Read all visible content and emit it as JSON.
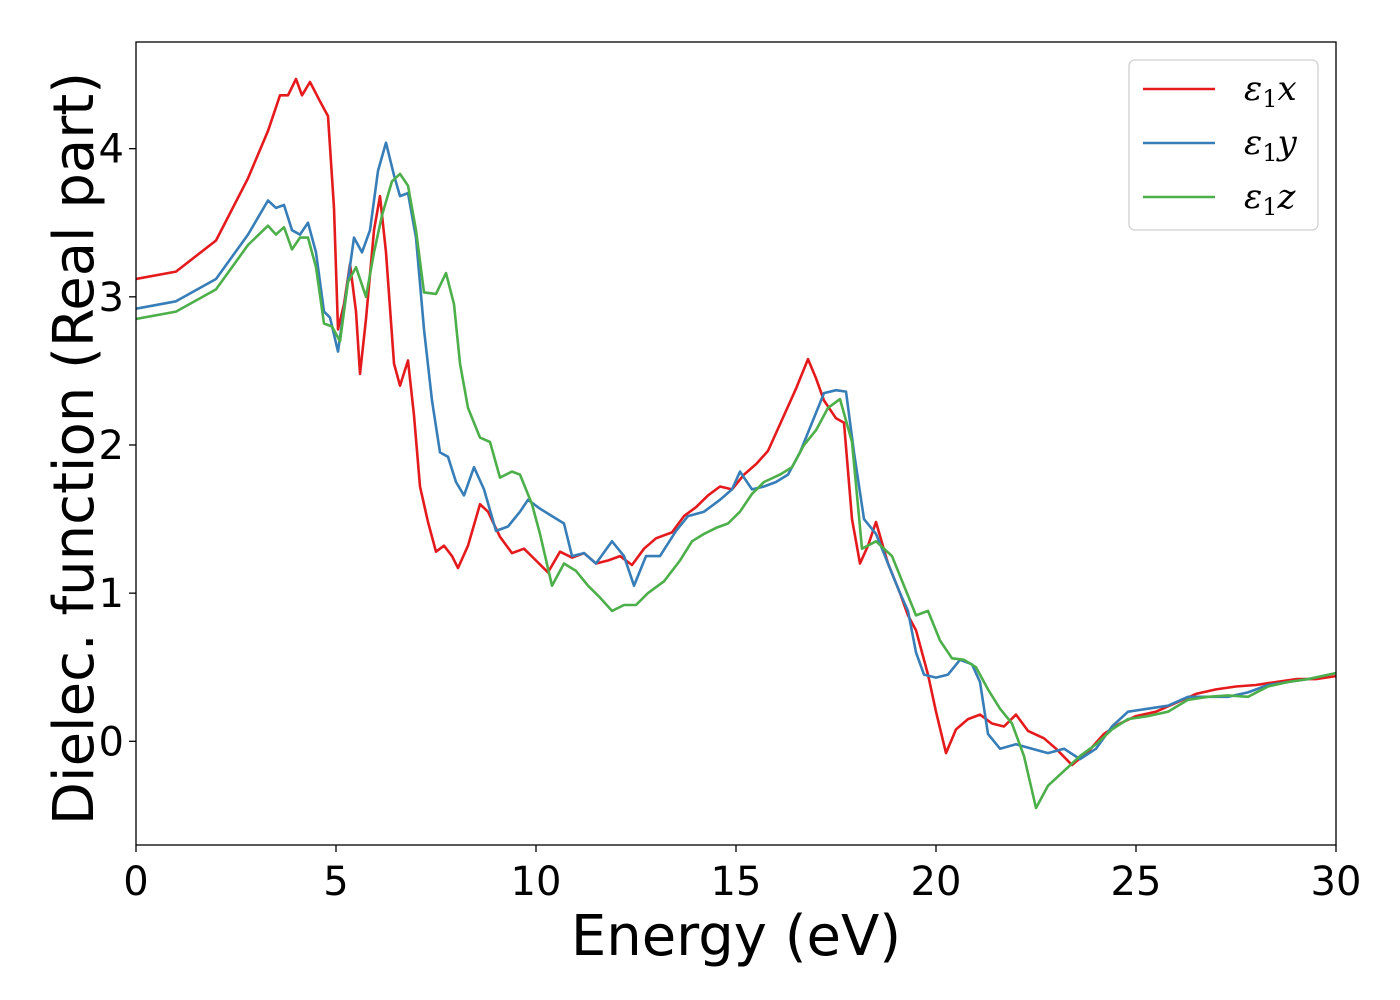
{
  "chart_data": {
    "type": "line",
    "xlabel": "Energy (eV)",
    "ylabel": "Dielec. function (Real part)",
    "xlim": [
      0,
      30
    ],
    "ylim": [
      -0.7,
      4.72
    ],
    "xticks": [
      0,
      5,
      10,
      15,
      20,
      25,
      30
    ],
    "yticks": [
      0,
      1,
      2,
      3,
      4
    ],
    "grid": false,
    "legend_position": "top-right",
    "series": [
      {
        "name": "ε1x",
        "legend_base": "ε",
        "legend_sub": "1",
        "legend_suffix": "x",
        "color": "#e41a1c",
        "points": [
          [
            0,
            3.12
          ],
          [
            1,
            3.17
          ],
          [
            2,
            3.38
          ],
          [
            2.8,
            3.8
          ],
          [
            3.3,
            4.12
          ],
          [
            3.6,
            4.36
          ],
          [
            3.8,
            4.36
          ],
          [
            4.0,
            4.47
          ],
          [
            4.15,
            4.36
          ],
          [
            4.35,
            4.45
          ],
          [
            4.6,
            4.32
          ],
          [
            4.8,
            4.22
          ],
          [
            4.95,
            3.6
          ],
          [
            5.05,
            2.78
          ],
          [
            5.2,
            2.95
          ],
          [
            5.35,
            3.22
          ],
          [
            5.5,
            2.9
          ],
          [
            5.6,
            2.48
          ],
          [
            5.75,
            2.85
          ],
          [
            5.95,
            3.45
          ],
          [
            6.1,
            3.68
          ],
          [
            6.25,
            3.3
          ],
          [
            6.45,
            2.55
          ],
          [
            6.6,
            2.4
          ],
          [
            6.8,
            2.57
          ],
          [
            6.95,
            2.2
          ],
          [
            7.1,
            1.72
          ],
          [
            7.3,
            1.48
          ],
          [
            7.5,
            1.28
          ],
          [
            7.7,
            1.32
          ],
          [
            7.9,
            1.25
          ],
          [
            8.05,
            1.17
          ],
          [
            8.3,
            1.32
          ],
          [
            8.6,
            1.6
          ],
          [
            8.8,
            1.55
          ],
          [
            9.1,
            1.38
          ],
          [
            9.4,
            1.27
          ],
          [
            9.7,
            1.3
          ],
          [
            10.0,
            1.22
          ],
          [
            10.3,
            1.14
          ],
          [
            10.6,
            1.28
          ],
          [
            10.9,
            1.24
          ],
          [
            11.2,
            1.27
          ],
          [
            11.5,
            1.2
          ],
          [
            11.8,
            1.22
          ],
          [
            12.1,
            1.25
          ],
          [
            12.4,
            1.19
          ],
          [
            12.7,
            1.3
          ],
          [
            13.0,
            1.37
          ],
          [
            13.4,
            1.41
          ],
          [
            13.7,
            1.52
          ],
          [
            14.0,
            1.58
          ],
          [
            14.3,
            1.66
          ],
          [
            14.6,
            1.72
          ],
          [
            14.9,
            1.7
          ],
          [
            15.2,
            1.8
          ],
          [
            15.5,
            1.87
          ],
          [
            15.8,
            1.96
          ],
          [
            16.2,
            2.2
          ],
          [
            16.5,
            2.38
          ],
          [
            16.8,
            2.58
          ],
          [
            17.0,
            2.45
          ],
          [
            17.2,
            2.3
          ],
          [
            17.5,
            2.18
          ],
          [
            17.7,
            2.15
          ],
          [
            17.9,
            1.5
          ],
          [
            18.1,
            1.2
          ],
          [
            18.3,
            1.32
          ],
          [
            18.5,
            1.48
          ],
          [
            18.8,
            1.2
          ],
          [
            19.1,
            1.0
          ],
          [
            19.3,
            0.85
          ],
          [
            19.5,
            0.75
          ],
          [
            19.8,
            0.45
          ],
          [
            20.0,
            0.2
          ],
          [
            20.25,
            -0.08
          ],
          [
            20.5,
            0.08
          ],
          [
            20.8,
            0.15
          ],
          [
            21.1,
            0.18
          ],
          [
            21.4,
            0.12
          ],
          [
            21.7,
            0.1
          ],
          [
            22.0,
            0.18
          ],
          [
            22.3,
            0.07
          ],
          [
            22.7,
            0.02
          ],
          [
            23.0,
            -0.05
          ],
          [
            23.4,
            -0.16
          ],
          [
            23.8,
            -0.07
          ],
          [
            24.2,
            0.05
          ],
          [
            24.6,
            0.12
          ],
          [
            25.0,
            0.17
          ],
          [
            25.5,
            0.2
          ],
          [
            26.0,
            0.26
          ],
          [
            26.5,
            0.32
          ],
          [
            27.0,
            0.35
          ],
          [
            27.5,
            0.37
          ],
          [
            28.0,
            0.38
          ],
          [
            28.5,
            0.4
          ],
          [
            29.0,
            0.42
          ],
          [
            29.5,
            0.42
          ],
          [
            30.0,
            0.44
          ]
        ]
      },
      {
        "name": "ε1y",
        "legend_base": "ε",
        "legend_sub": "1",
        "legend_suffix": "y",
        "color": "#377eb8",
        "points": [
          [
            0,
            2.92
          ],
          [
            1,
            2.97
          ],
          [
            2,
            3.12
          ],
          [
            2.8,
            3.42
          ],
          [
            3.3,
            3.65
          ],
          [
            3.5,
            3.6
          ],
          [
            3.7,
            3.62
          ],
          [
            3.9,
            3.45
          ],
          [
            4.1,
            3.42
          ],
          [
            4.3,
            3.5
          ],
          [
            4.5,
            3.3
          ],
          [
            4.7,
            2.9
          ],
          [
            4.85,
            2.86
          ],
          [
            5.05,
            2.63
          ],
          [
            5.2,
            2.92
          ],
          [
            5.45,
            3.4
          ],
          [
            5.65,
            3.3
          ],
          [
            5.85,
            3.45
          ],
          [
            6.05,
            3.85
          ],
          [
            6.25,
            4.04
          ],
          [
            6.45,
            3.82
          ],
          [
            6.6,
            3.68
          ],
          [
            6.8,
            3.7
          ],
          [
            7.0,
            3.4
          ],
          [
            7.2,
            2.78
          ],
          [
            7.4,
            2.3
          ],
          [
            7.6,
            1.95
          ],
          [
            7.8,
            1.92
          ],
          [
            8.0,
            1.75
          ],
          [
            8.2,
            1.66
          ],
          [
            8.45,
            1.85
          ],
          [
            8.7,
            1.7
          ],
          [
            9.0,
            1.42
          ],
          [
            9.3,
            1.45
          ],
          [
            9.6,
            1.55
          ],
          [
            9.8,
            1.63
          ],
          [
            10.1,
            1.57
          ],
          [
            10.4,
            1.52
          ],
          [
            10.7,
            1.47
          ],
          [
            10.9,
            1.25
          ],
          [
            11.2,
            1.27
          ],
          [
            11.5,
            1.2
          ],
          [
            11.9,
            1.35
          ],
          [
            12.2,
            1.25
          ],
          [
            12.45,
            1.05
          ],
          [
            12.75,
            1.25
          ],
          [
            13.1,
            1.25
          ],
          [
            13.5,
            1.42
          ],
          [
            13.8,
            1.52
          ],
          [
            14.2,
            1.55
          ],
          [
            14.6,
            1.63
          ],
          [
            14.9,
            1.7
          ],
          [
            15.1,
            1.82
          ],
          [
            15.4,
            1.7
          ],
          [
            15.7,
            1.72
          ],
          [
            16.0,
            1.75
          ],
          [
            16.3,
            1.8
          ],
          [
            16.6,
            1.95
          ],
          [
            16.9,
            2.15
          ],
          [
            17.2,
            2.35
          ],
          [
            17.5,
            2.37
          ],
          [
            17.75,
            2.36
          ],
          [
            17.95,
            1.95
          ],
          [
            18.2,
            1.5
          ],
          [
            18.5,
            1.4
          ],
          [
            18.8,
            1.2
          ],
          [
            19.1,
            1.0
          ],
          [
            19.3,
            0.88
          ],
          [
            19.5,
            0.6
          ],
          [
            19.7,
            0.45
          ],
          [
            20.0,
            0.43
          ],
          [
            20.3,
            0.45
          ],
          [
            20.6,
            0.55
          ],
          [
            20.9,
            0.52
          ],
          [
            21.1,
            0.4
          ],
          [
            21.3,
            0.05
          ],
          [
            21.6,
            -0.05
          ],
          [
            22.0,
            -0.02
          ],
          [
            22.4,
            -0.05
          ],
          [
            22.8,
            -0.08
          ],
          [
            23.2,
            -0.05
          ],
          [
            23.6,
            -0.12
          ],
          [
            24.0,
            -0.05
          ],
          [
            24.4,
            0.1
          ],
          [
            24.8,
            0.2
          ],
          [
            25.3,
            0.22
          ],
          [
            25.8,
            0.24
          ],
          [
            26.3,
            0.3
          ],
          [
            26.8,
            0.3
          ],
          [
            27.3,
            0.3
          ],
          [
            27.8,
            0.33
          ],
          [
            28.3,
            0.38
          ],
          [
            28.8,
            0.4
          ],
          [
            29.3,
            0.42
          ],
          [
            30.0,
            0.46
          ]
        ]
      },
      {
        "name": "ε1z",
        "legend_base": "ε",
        "legend_sub": "1",
        "legend_suffix": "z",
        "color": "#4daf4a",
        "points": [
          [
            0,
            2.85
          ],
          [
            1,
            2.9
          ],
          [
            2,
            3.05
          ],
          [
            2.8,
            3.35
          ],
          [
            3.3,
            3.48
          ],
          [
            3.5,
            3.42
          ],
          [
            3.7,
            3.47
          ],
          [
            3.9,
            3.32
          ],
          [
            4.1,
            3.4
          ],
          [
            4.3,
            3.4
          ],
          [
            4.5,
            3.2
          ],
          [
            4.7,
            2.82
          ],
          [
            4.9,
            2.8
          ],
          [
            5.1,
            2.7
          ],
          [
            5.3,
            3.1
          ],
          [
            5.5,
            3.2
          ],
          [
            5.75,
            3.0
          ],
          [
            5.95,
            3.3
          ],
          [
            6.15,
            3.55
          ],
          [
            6.4,
            3.78
          ],
          [
            6.6,
            3.83
          ],
          [
            6.8,
            3.75
          ],
          [
            7.0,
            3.45
          ],
          [
            7.2,
            3.03
          ],
          [
            7.5,
            3.02
          ],
          [
            7.75,
            3.16
          ],
          [
            7.95,
            2.95
          ],
          [
            8.1,
            2.55
          ],
          [
            8.3,
            2.25
          ],
          [
            8.6,
            2.05
          ],
          [
            8.85,
            2.02
          ],
          [
            9.1,
            1.78
          ],
          [
            9.4,
            1.82
          ],
          [
            9.6,
            1.8
          ],
          [
            9.9,
            1.6
          ],
          [
            10.1,
            1.4
          ],
          [
            10.4,
            1.05
          ],
          [
            10.7,
            1.2
          ],
          [
            11.0,
            1.15
          ],
          [
            11.3,
            1.05
          ],
          [
            11.6,
            0.97
          ],
          [
            11.9,
            0.88
          ],
          [
            12.2,
            0.92
          ],
          [
            12.5,
            0.92
          ],
          [
            12.8,
            1.0
          ],
          [
            13.2,
            1.08
          ],
          [
            13.6,
            1.22
          ],
          [
            13.9,
            1.35
          ],
          [
            14.2,
            1.4
          ],
          [
            14.5,
            1.44
          ],
          [
            14.8,
            1.47
          ],
          [
            15.1,
            1.55
          ],
          [
            15.4,
            1.67
          ],
          [
            15.7,
            1.75
          ],
          [
            16.1,
            1.8
          ],
          [
            16.4,
            1.85
          ],
          [
            16.7,
            2.0
          ],
          [
            17.0,
            2.1
          ],
          [
            17.3,
            2.25
          ],
          [
            17.6,
            2.31
          ],
          [
            17.9,
            2.02
          ],
          [
            18.15,
            1.3
          ],
          [
            18.5,
            1.35
          ],
          [
            18.9,
            1.25
          ],
          [
            19.2,
            1.05
          ],
          [
            19.5,
            0.85
          ],
          [
            19.8,
            0.88
          ],
          [
            20.1,
            0.68
          ],
          [
            20.4,
            0.56
          ],
          [
            20.7,
            0.55
          ],
          [
            21.0,
            0.5
          ],
          [
            21.3,
            0.35
          ],
          [
            21.6,
            0.22
          ],
          [
            21.9,
            0.12
          ],
          [
            22.2,
            -0.1
          ],
          [
            22.5,
            -0.45
          ],
          [
            22.8,
            -0.3
          ],
          [
            23.2,
            -0.2
          ],
          [
            23.6,
            -0.1
          ],
          [
            24.0,
            -0.02
          ],
          [
            24.4,
            0.08
          ],
          [
            24.8,
            0.15
          ],
          [
            25.3,
            0.17
          ],
          [
            25.8,
            0.2
          ],
          [
            26.3,
            0.28
          ],
          [
            26.8,
            0.3
          ],
          [
            27.3,
            0.31
          ],
          [
            27.8,
            0.3
          ],
          [
            28.3,
            0.37
          ],
          [
            28.8,
            0.4
          ],
          [
            29.3,
            0.42
          ],
          [
            30.0,
            0.46
          ]
        ]
      }
    ]
  }
}
